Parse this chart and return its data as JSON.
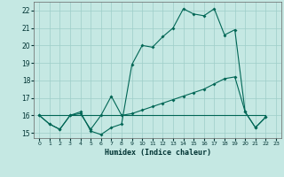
{
  "xlabel": "Humidex (Indice chaleur)",
  "background_color": "#c5e8e3",
  "grid_color": "#9ecec8",
  "line_color": "#006655",
  "xlim": [
    -0.5,
    23.5
  ],
  "ylim": [
    14.7,
    22.5
  ],
  "xticks": [
    0,
    1,
    2,
    3,
    4,
    5,
    6,
    7,
    8,
    9,
    10,
    11,
    12,
    13,
    14,
    15,
    16,
    17,
    18,
    19,
    20,
    21,
    22,
    23
  ],
  "yticks": [
    15,
    16,
    17,
    18,
    19,
    20,
    21,
    22
  ],
  "line1_x": [
    0,
    1,
    2,
    3,
    4,
    5,
    6,
    7,
    8,
    9,
    10,
    11,
    12,
    13,
    14,
    15,
    16,
    17,
    18,
    19,
    20,
    21,
    22
  ],
  "line1_y": [
    16.0,
    15.5,
    15.2,
    16.0,
    16.2,
    15.1,
    14.9,
    15.3,
    15.5,
    18.9,
    20.0,
    19.9,
    20.5,
    21.0,
    22.1,
    21.8,
    21.7,
    22.1,
    20.6,
    20.9,
    16.2,
    15.3,
    15.9
  ],
  "line2_x": [
    0,
    1,
    2,
    3,
    4,
    5,
    6,
    7,
    8,
    9,
    10,
    11,
    12,
    13,
    14,
    15,
    16,
    17,
    18,
    19,
    20,
    21,
    22
  ],
  "line2_y": [
    16.0,
    15.5,
    15.2,
    16.0,
    16.1,
    15.2,
    16.0,
    17.1,
    16.0,
    16.1,
    16.3,
    16.5,
    16.7,
    16.9,
    17.1,
    17.3,
    17.5,
    17.8,
    18.1,
    18.2,
    16.2,
    15.3,
    15.9
  ],
  "line3_x": [
    0,
    22
  ],
  "line3_y": [
    16.0,
    16.0
  ]
}
